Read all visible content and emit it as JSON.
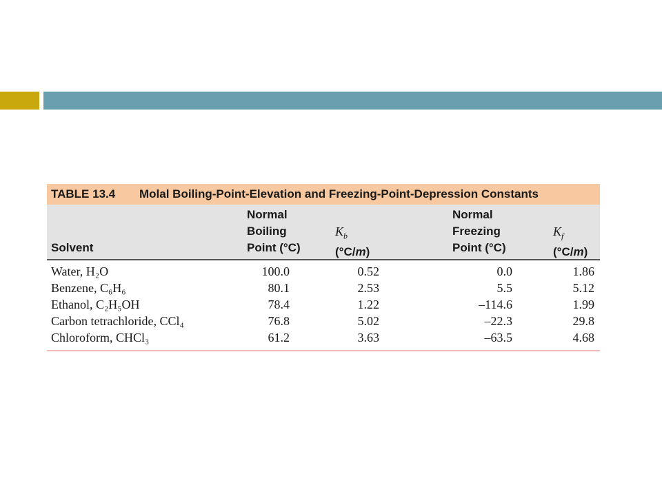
{
  "table": {
    "caption_number": "TABLE 13.4",
    "caption_title": "Molal Boiling-Point-Elevation and Freezing-Point-Depression Constants",
    "headers": {
      "solvent": "Solvent",
      "bp_line1": "Normal",
      "bp_line2": "Boiling",
      "bp_line3": "Point (°C)",
      "kb_symbol": "K",
      "kb_sub": "b",
      "kb_unit_prefix": "(°C/",
      "kb_unit_m": "m",
      "kb_unit_suffix": ")",
      "fp_line1": "Normal",
      "fp_line2": "Freezing",
      "fp_line3": "Point (°C)",
      "kf_symbol": "K",
      "kf_sub": "f",
      "kf_unit_prefix": "(°C/",
      "kf_unit_m": "m",
      "kf_unit_suffix": ")"
    },
    "rows": [
      {
        "solvent": "Water, H₂O",
        "bp": "100.0",
        "kb": "0.52",
        "fp": "0.0",
        "kf": "1.86"
      },
      {
        "solvent": "Benzene, C₆H₆",
        "bp": "80.1",
        "kb": "2.53",
        "fp": "5.5",
        "kf": "5.12"
      },
      {
        "solvent": "Ethanol, C₂H₅OH",
        "bp": "78.4",
        "kb": "1.22",
        "fp": "–114.6",
        "kf": "1.99"
      },
      {
        "solvent": "Carbon tetrachloride, CCl₄",
        "bp": "76.8",
        "kb": "5.02",
        "fp": "–22.3",
        "kf": "29.8"
      },
      {
        "solvent": "Chloroform, CHCl₃",
        "bp": "61.2",
        "kb": "3.63",
        "fp": "–63.5",
        "kf": "4.68"
      }
    ]
  },
  "colors": {
    "accent_yellow": "#c9a80e",
    "accent_blue": "#6a9fb0",
    "caption_bg": "#f8c9a0",
    "header_bg": "#e3e3e3",
    "bottom_rule": "#f2b8b8"
  }
}
